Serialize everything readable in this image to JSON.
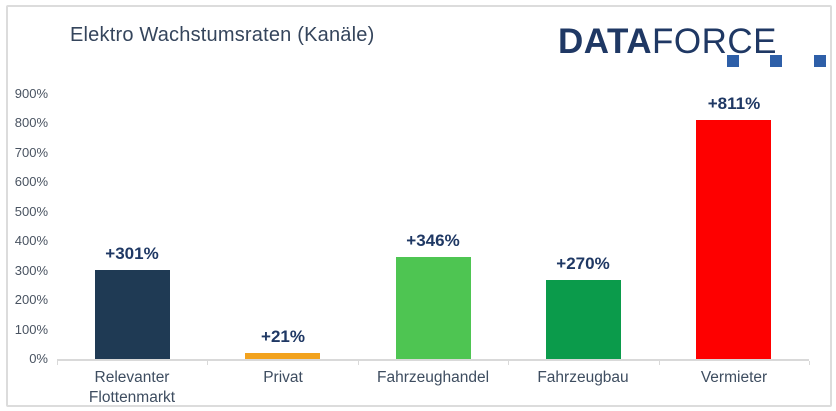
{
  "title": "Elektro Wachstumsraten (Kanäle)",
  "logo": {
    "part1": "DATA",
    "part2": "FORCE",
    "text_color": "#1F3864",
    "square_color": "#2E5FA8"
  },
  "colors": {
    "axis": "#D9D9D9",
    "title_text": "#35455C",
    "value_label": "#1F3864",
    "tick_label": "#495361",
    "category_label": "#3E4D60",
    "frame_border": "#DCDCDC"
  },
  "chart_data": {
    "type": "bar",
    "title": "Elektro Wachstumsraten (Kanäle)",
    "categories": [
      "Relevanter Flottenmarkt",
      "Privat",
      "Fahrzeughandel",
      "Fahrzeugbau",
      "Vermieter"
    ],
    "values": [
      301,
      21,
      346,
      270,
      811
    ],
    "data_labels": [
      "+301%",
      "+21%",
      "+346%",
      "+270%",
      "+811%"
    ],
    "bar_colors": [
      "#1F3A54",
      "#F2A21E",
      "#4EC552",
      "#0B9B4B",
      "#FE0000"
    ],
    "xlabel": "",
    "ylabel": "",
    "ylim": [
      0,
      900
    ],
    "ytick_step": 100,
    "ytick_labels": [
      "0%",
      "100%",
      "200%",
      "300%",
      "400%",
      "500%",
      "600%",
      "700%",
      "800%",
      "900%"
    ],
    "grid": false,
    "legend": false,
    "value_unit": "percent"
  }
}
